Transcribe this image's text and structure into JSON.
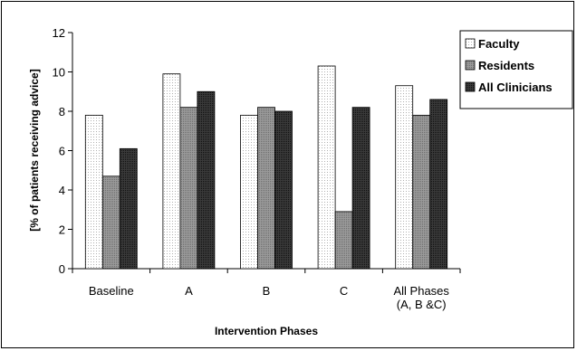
{
  "chart_data": {
    "type": "bar",
    "categories": [
      [
        "Baseline"
      ],
      [
        "A"
      ],
      [
        "B"
      ],
      [
        "C"
      ],
      [
        "All Phases",
        "(A, B &C)"
      ]
    ],
    "series": [
      {
        "name": "Faculty",
        "values": [
          7.8,
          9.9,
          7.8,
          10.3,
          9.3
        ],
        "color": "#f4f4f4",
        "pattern": "dots"
      },
      {
        "name": "Residents",
        "values": [
          4.7,
          8.2,
          8.2,
          2.9,
          7.8
        ],
        "color": "#8c8c8c",
        "pattern": "gray"
      },
      {
        "name": "All Clinicians",
        "values": [
          6.1,
          9.0,
          8.0,
          8.2,
          8.6
        ],
        "color": "#2b2b2b",
        "pattern": "dark"
      }
    ],
    "title": "",
    "xlabel": "Intervention Phases",
    "ylabel": "[% of patients receiving advice]",
    "ylim": [
      0,
      12
    ],
    "yticks": [
      0,
      2,
      4,
      6,
      8,
      10,
      12
    ],
    "grid": false,
    "legend_position": "top-right"
  }
}
